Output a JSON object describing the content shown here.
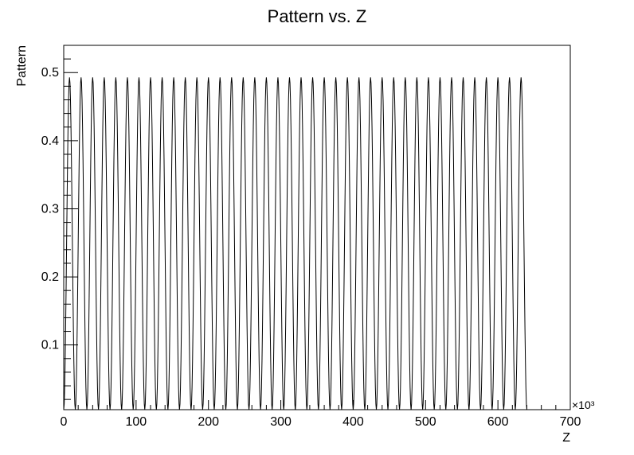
{
  "chart_data": {
    "type": "line",
    "title": "Pattern vs. Z",
    "xlabel": "Z",
    "ylabel": "Pattern",
    "x_multiplier_label": "×10³",
    "x_unit_scale": 1000,
    "xlim": [
      0,
      700000
    ],
    "ylim": [
      0.005,
      0.54
    ],
    "x_ticks": [
      0,
      100,
      200,
      300,
      400,
      500,
      600,
      700
    ],
    "y_ticks": [
      0.1,
      0.2,
      0.3,
      0.4,
      0.5
    ],
    "x_tick_labels": [
      "0",
      "100",
      "200",
      "300",
      "400",
      "500",
      "600",
      "700"
    ],
    "y_tick_labels": [
      "0.1",
      "0.2",
      "0.3",
      "0.4",
      "0.5"
    ],
    "grid": false,
    "legend": "none",
    "series": [
      {
        "line_color": "#000000",
        "pattern": "periodic oscillation",
        "period": 16000,
        "peak": 0.493,
        "trough": 0.005,
        "x_start": 0,
        "x_end": 640000,
        "tail_value": 0.005,
        "tail_end": 700000
      }
    ]
  }
}
